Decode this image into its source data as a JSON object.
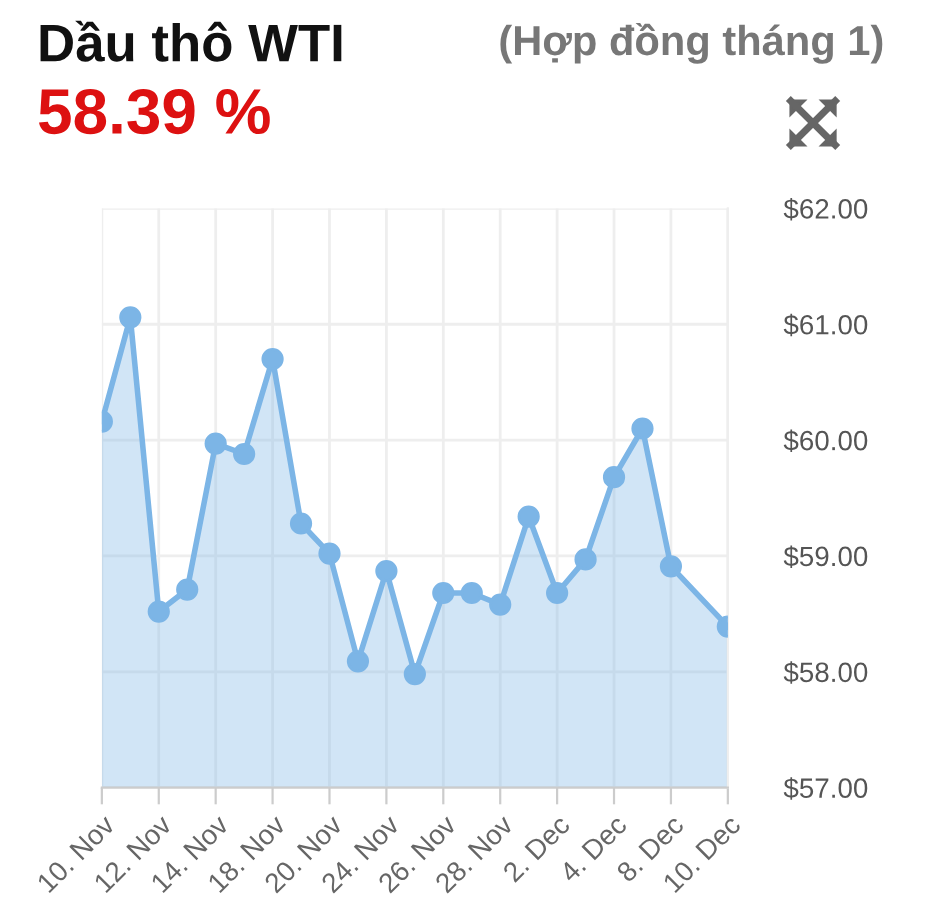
{
  "chart_data": {
    "type": "area",
    "title": "Dầu thô WTI",
    "subtitle": "58.39 %",
    "annotations": [
      "(Hợp đồng tháng 1)"
    ],
    "categories": [
      "10. Nov",
      null,
      "12. Nov",
      null,
      "14. Nov",
      null,
      "18. Nov",
      null,
      "20. Nov",
      null,
      "24. Nov",
      null,
      "26. Nov",
      null,
      "28. Nov",
      null,
      "2. Dec",
      null,
      "4. Dec",
      null,
      "8. Dec",
      null,
      "10. Dec"
    ],
    "series": [
      {
        "color": "#7cb5e6",
        "values": [
          60.16,
          61.06,
          58.52,
          58.71,
          59.97,
          59.88,
          60.7,
          59.28,
          59.02,
          58.09,
          58.87,
          57.98,
          58.68,
          58.68,
          58.58,
          59.34,
          58.68,
          58.97,
          59.68,
          60.1,
          58.91,
          null,
          58.39
        ]
      }
    ],
    "ylim": [
      57,
      62
    ],
    "yticks": [
      {
        "value": 57,
        "label": "$57.00"
      },
      {
        "value": 58,
        "label": "$58.00"
      },
      {
        "value": 59,
        "label": "$59.00"
      },
      {
        "value": 60,
        "label": "$60.00"
      },
      {
        "value": 61,
        "label": "$61.00"
      },
      {
        "value": 62,
        "label": "$62.00"
      }
    ],
    "grid": true,
    "marker": "circle",
    "line_style": "solid",
    "legend": false
  }
}
